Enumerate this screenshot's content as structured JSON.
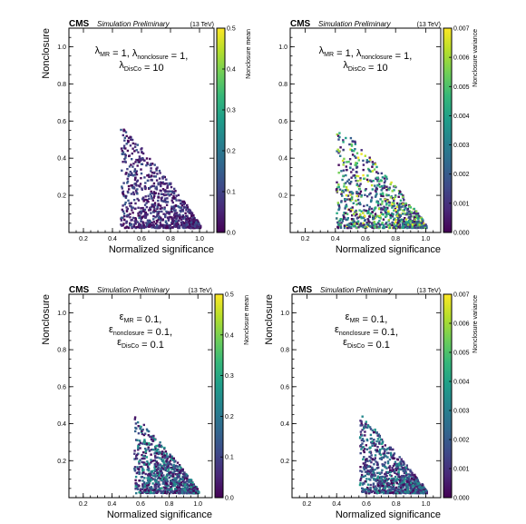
{
  "header": {
    "experiment": "CMS",
    "status": "Simulation Preliminary",
    "energy": "(13 TeV)"
  },
  "colormap": [
    "#440154",
    "#482878",
    "#3e4a89",
    "#31688e",
    "#26828e",
    "#1f9e89",
    "#35b779",
    "#6ece58",
    "#b5de2b",
    "#fde725"
  ],
  "chart_data": [
    {
      "type": "scatter",
      "xlabel": "Normalized significance",
      "ylabel": "Nonclosure",
      "xlim": [
        0.1,
        1.1
      ],
      "ylim": [
        0.0,
        1.1
      ],
      "xticks": [
        "0.2",
        "0.4",
        "0.6",
        "0.8",
        "1.0"
      ],
      "yticks": [
        "0.2",
        "0.4",
        "0.6",
        "0.8",
        "1.0"
      ],
      "colorbar": {
        "label": "Nonclosure mean",
        "range": [
          0,
          0.5
        ],
        "ticks": [
          "0.0",
          "0.1",
          "0.2",
          "0.3",
          "0.4",
          "0.5"
        ]
      },
      "annotation": [
        [
          [
            "λ",
            ""
          ],
          [
            "MR",
            "sub"
          ],
          [
            " = 1,  λ",
            ""
          ],
          [
            "nonclosure",
            "sub"
          ],
          [
            " = 1,",
            ""
          ]
        ],
        [
          [
            "λ",
            ""
          ],
          [
            "DisCo",
            "sub"
          ],
          [
            " = 10",
            ""
          ]
        ]
      ],
      "point_cloud": {
        "x_range": [
          0.45,
          1.0
        ],
        "nonclosure_max": 0.6,
        "n_points": 900,
        "color_value_range": [
          0.0,
          0.15
        ]
      }
    },
    {
      "type": "scatter",
      "xlabel": "Normalized significance",
      "ylabel": "",
      "xlim": [
        0.1,
        1.1
      ],
      "ylim": [
        0.0,
        1.1
      ],
      "xticks": [
        "0.2",
        "0.4",
        "0.6",
        "0.8",
        "1.0"
      ],
      "yticks": [
        "0.2",
        "0.4",
        "0.6",
        "0.8",
        "1.0"
      ],
      "colorbar": {
        "label": "Nonclosure variance",
        "range": [
          0,
          0.007
        ],
        "ticks": [
          "0.000",
          "0.001",
          "0.002",
          "0.003",
          "0.004",
          "0.005",
          "0.006",
          "0.007"
        ]
      },
      "annotation": [
        [
          [
            "λ",
            ""
          ],
          [
            "MR",
            "sub"
          ],
          [
            " = 1,  λ",
            ""
          ],
          [
            "nonclosure",
            "sub"
          ],
          [
            " = 1,",
            ""
          ]
        ],
        [
          [
            "λ",
            ""
          ],
          [
            "DisCo",
            "sub"
          ],
          [
            " = 10",
            ""
          ]
        ]
      ],
      "point_cloud": {
        "x_range": [
          0.4,
          1.0
        ],
        "nonclosure_max": 0.6,
        "n_points": 900,
        "color_value_range": [
          0.0,
          0.007
        ]
      }
    },
    {
      "type": "scatter",
      "xlabel": "Normalized significance",
      "ylabel": "Nonclosure",
      "xlim": [
        0.1,
        1.1
      ],
      "ylim": [
        0.0,
        1.1
      ],
      "xticks": [
        "0.2",
        "0.4",
        "0.6",
        "0.8",
        "1.0"
      ],
      "yticks": [
        "0.2",
        "0.4",
        "0.6",
        "0.8",
        "1.0"
      ],
      "colorbar": {
        "label": "Nonclosure mean",
        "range": [
          0,
          0.5
        ],
        "ticks": [
          "0.0",
          "0.1",
          "0.2",
          "0.3",
          "0.4",
          "0.5"
        ]
      },
      "annotation": [
        [
          [
            "ε",
            ""
          ],
          [
            "MR",
            "sub"
          ],
          [
            " = 0.1,",
            ""
          ]
        ],
        [
          [
            "ε",
            ""
          ],
          [
            "nonclosure",
            "sub"
          ],
          [
            " = 0.1,",
            ""
          ]
        ],
        [
          [
            "ε",
            ""
          ],
          [
            "DisCo",
            "sub"
          ],
          [
            " = 0.1",
            ""
          ]
        ]
      ],
      "point_cloud": {
        "x_range": [
          0.55,
          1.0
        ],
        "nonclosure_max": 0.46,
        "n_points": 900,
        "color_value_range": [
          0.0,
          0.3
        ]
      }
    },
    {
      "type": "scatter",
      "xlabel": "Normalized significance",
      "ylabel": "Nonclosure",
      "xlim": [
        0.1,
        1.1
      ],
      "ylim": [
        0.0,
        1.1
      ],
      "xticks": [
        "0.2",
        "0.4",
        "0.6",
        "0.8",
        "1.0"
      ],
      "yticks": [
        "0.2",
        "0.4",
        "0.6",
        "0.8",
        "1.0"
      ],
      "colorbar": {
        "label": "Nonclosure variance",
        "range": [
          0,
          0.007
        ],
        "ticks": [
          "0.000",
          "0.001",
          "0.002",
          "0.003",
          "0.004",
          "0.005",
          "0.006",
          "0.007"
        ]
      },
      "annotation": [
        [
          [
            "ε",
            ""
          ],
          [
            "MR",
            "sub"
          ],
          [
            " = 0.1,",
            ""
          ]
        ],
        [
          [
            "ε",
            ""
          ],
          [
            "nonclosure",
            "sub"
          ],
          [
            " = 0.1,",
            ""
          ]
        ],
        [
          [
            "ε",
            ""
          ],
          [
            "DisCo",
            "sub"
          ],
          [
            " = 0.1",
            ""
          ]
        ]
      ],
      "point_cloud": {
        "x_range": [
          0.55,
          1.0
        ],
        "nonclosure_max": 0.46,
        "n_points": 900,
        "color_value_range": [
          0.0,
          0.004
        ]
      }
    }
  ]
}
